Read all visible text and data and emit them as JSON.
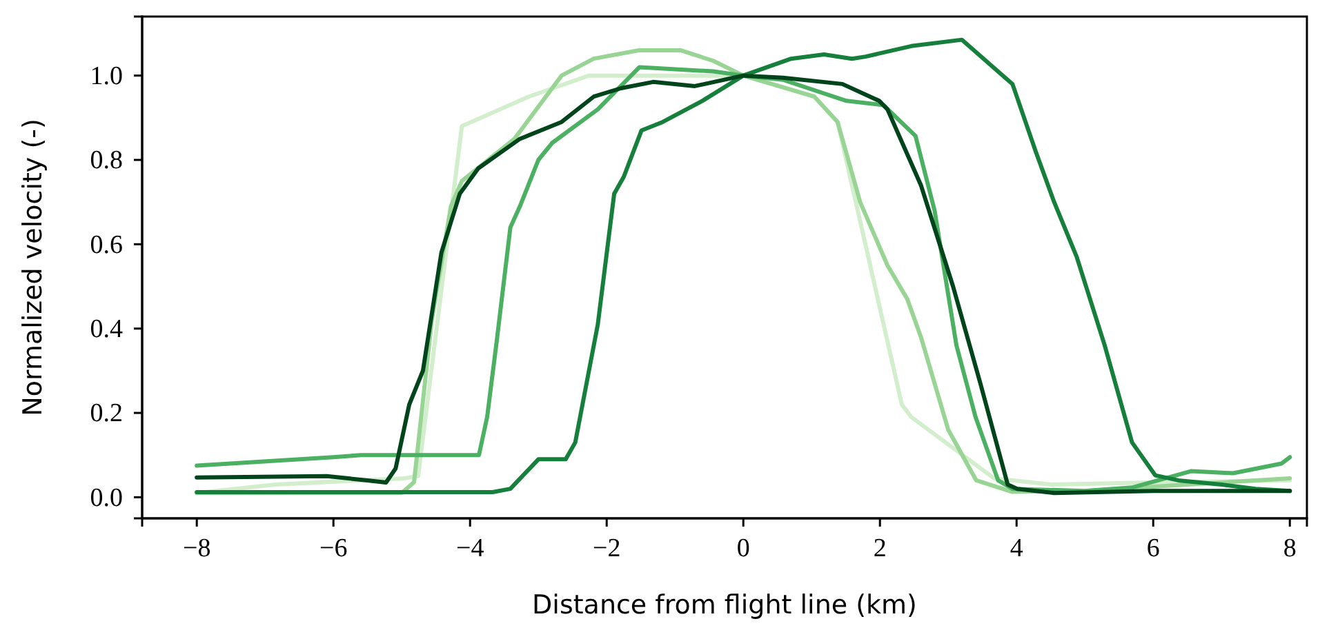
{
  "chart_data": {
    "type": "line",
    "xlabel": "Distance from flight line (km)",
    "ylabel": "Normalized velocity (-)",
    "xlim": [
      -8.8,
      8.25
    ],
    "ylim": [
      -0.05,
      1.14
    ],
    "xticks": [
      {
        "value": -8,
        "label": "−8"
      },
      {
        "value": -6,
        "label": "−6"
      },
      {
        "value": -4,
        "label": "−4"
      },
      {
        "value": -2,
        "label": "−2"
      },
      0,
      2,
      4,
      6,
      8
    ],
    "yticks": [
      {
        "value": 0,
        "label": "0.0"
      },
      {
        "value": 0.2,
        "label": "0.2"
      },
      {
        "value": 0.4,
        "label": "0.4"
      },
      {
        "value": 0.6,
        "label": "0.6"
      },
      {
        "value": 0.8,
        "label": "0.8"
      },
      {
        "value": 1,
        "label": "1.0"
      }
    ],
    "grid": false,
    "marker": "none",
    "line_style": "solid",
    "series": [
      {
        "color": "#d3eecd",
        "x": [
          -8,
          -6.85,
          -4.96,
          -4.76,
          -4.12,
          -3.14,
          -2.26,
          -1,
          0,
          1.04,
          1.38,
          2.32,
          2.46,
          3.67,
          4.5,
          6,
          8
        ],
        "values": [
          0.01,
          0.03,
          0.045,
          0.05,
          0.88,
          0.95,
          1.0,
          1.0,
          1.0,
          0.95,
          0.89,
          0.22,
          0.19,
          0.045,
          0.03,
          0.035,
          0.04
        ]
      },
      {
        "color": "#98d594",
        "x": [
          -8,
          -5,
          -4.82,
          -4.56,
          -4.28,
          -4.12,
          -3.35,
          -2.66,
          -2.19,
          -1.53,
          -0.92,
          -0.44,
          0,
          1.04,
          1.38,
          1.71,
          2.11,
          2.4,
          2.6,
          3.0,
          3.41,
          3.93,
          5,
          6.5,
          8
        ],
        "values": [
          0.01,
          0.01,
          0.036,
          0.42,
          0.69,
          0.75,
          0.85,
          1.0,
          1.04,
          1.06,
          1.06,
          1.035,
          1.0,
          0.95,
          0.89,
          0.7,
          0.55,
          0.47,
          0.38,
          0.16,
          0.04,
          0.013,
          0.015,
          0.03,
          0.045
        ]
      },
      {
        "color": "#4bb062",
        "x": [
          -8,
          -6,
          -5.6,
          -4,
          -3.87,
          -3.75,
          -3.61,
          -3.41,
          -3.27,
          -3.0,
          -2.8,
          -2.13,
          -1.52,
          -0.44,
          0,
          0.58,
          1.51,
          2.05,
          2.52,
          2.8,
          3.12,
          3.4,
          3.73,
          3.94,
          5,
          5.69,
          6.56,
          7.17,
          7.88,
          8
        ],
        "values": [
          0.075,
          0.095,
          0.1,
          0.1,
          0.1,
          0.19,
          0.37,
          0.64,
          0.69,
          0.8,
          0.84,
          0.92,
          1.02,
          1.01,
          1.0,
          0.99,
          0.94,
          0.93,
          0.857,
          0.68,
          0.36,
          0.19,
          0.04,
          0.02,
          0.015,
          0.023,
          0.062,
          0.057,
          0.08,
          0.095
        ]
      },
      {
        "color": "#157f3b",
        "x": [
          -8,
          -3.9,
          -3.67,
          -3.41,
          -3.0,
          -2.6,
          -2.46,
          -2.13,
          -1.89,
          -1.75,
          -1.49,
          -1.18,
          -0.6,
          0,
          0.7,
          1.18,
          1.59,
          1.79,
          2.46,
          3.2,
          3.94,
          4.28,
          4.55,
          4.88,
          5.29,
          5.69,
          6.03,
          6.37,
          7,
          7.5,
          8
        ],
        "values": [
          0.012,
          0.012,
          0.012,
          0.02,
          0.09,
          0.09,
          0.13,
          0.41,
          0.72,
          0.76,
          0.87,
          0.89,
          0.94,
          1.0,
          1.04,
          1.05,
          1.04,
          1.045,
          1.07,
          1.085,
          0.98,
          0.82,
          0.7,
          0.57,
          0.36,
          0.13,
          0.052,
          0.04,
          0.03,
          0.02,
          0.015
        ]
      },
      {
        "color": "#00441b",
        "x": [
          -8,
          -6.1,
          -5.5,
          -5.23,
          -5.09,
          -4.89,
          -4.69,
          -4.42,
          -4.15,
          -3.88,
          -3.27,
          -2.66,
          -2.19,
          -1.79,
          -1.32,
          -0.71,
          0,
          0.58,
          1.45,
          1.99,
          2.11,
          2.6,
          3.07,
          3.47,
          3.87,
          4.01,
          4.55,
          6,
          8
        ],
        "values": [
          0.047,
          0.05,
          0.04,
          0.035,
          0.068,
          0.22,
          0.3,
          0.58,
          0.72,
          0.78,
          0.85,
          0.89,
          0.95,
          0.97,
          0.985,
          0.975,
          1.0,
          0.995,
          0.98,
          0.94,
          0.92,
          0.74,
          0.5,
          0.27,
          0.03,
          0.02,
          0.01,
          0.015,
          0.015
        ]
      }
    ]
  }
}
